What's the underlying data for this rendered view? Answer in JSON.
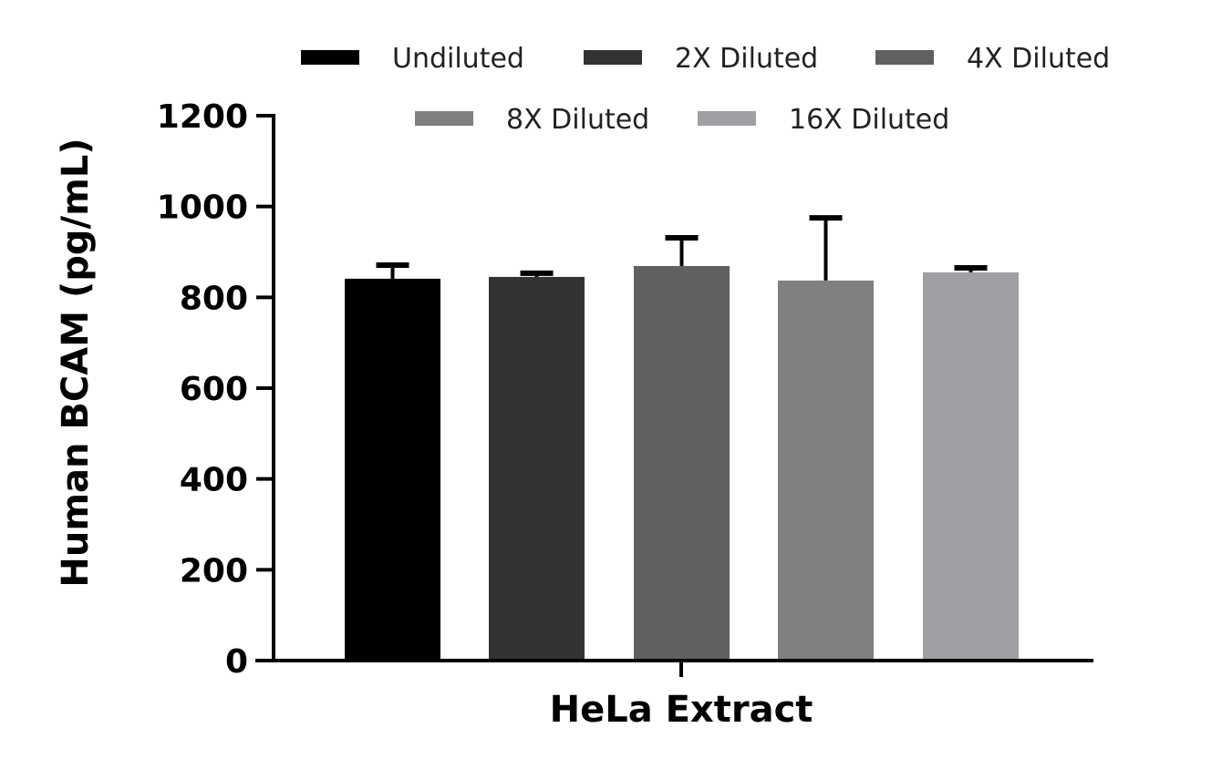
{
  "chart_data": {
    "type": "bar",
    "xlabel": "HeLa Extract",
    "ylabel": "Human BCAM (pg/mL)",
    "ylim": [
      0,
      1200
    ],
    "yticks": [
      "0",
      "200",
      "400",
      "600",
      "800",
      "1000",
      "1200"
    ],
    "grid": false,
    "legend_position": "top",
    "categories": [
      "HeLa Extract"
    ],
    "series": [
      {
        "name": "Undiluted",
        "value": 841,
        "error_upper": 871,
        "color": "#000000"
      },
      {
        "name": "2X Diluted",
        "value": 845,
        "error_upper": 853,
        "color": "#333333"
      },
      {
        "name": "4X Diluted",
        "value": 869,
        "error_upper": 931,
        "color": "#606060"
      },
      {
        "name": "8X Diluted",
        "value": 837,
        "error_upper": 975,
        "color": "#808080"
      },
      {
        "name": "16X Diluted",
        "value": 855,
        "error_upper": 865,
        "color": "#a0a0a4"
      }
    ]
  }
}
